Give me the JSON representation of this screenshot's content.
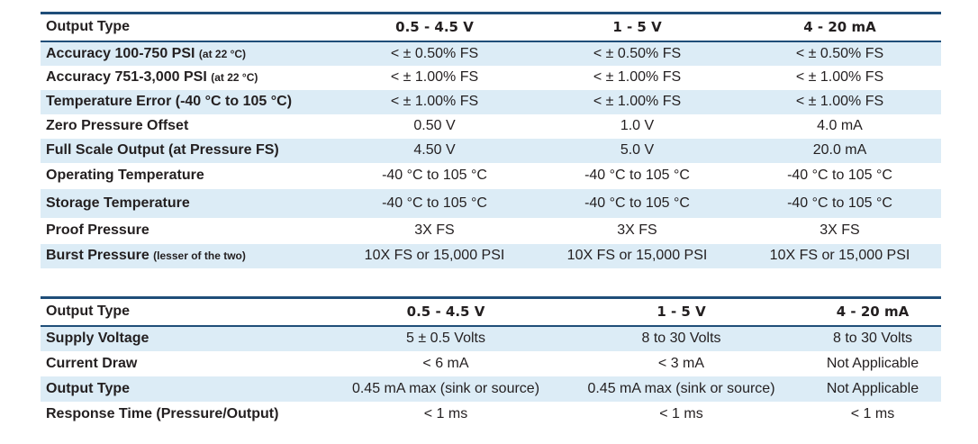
{
  "tables": [
    {
      "header": [
        "Output Type",
        "0.5 - 4.5 V",
        "1 - 5 V",
        "4 - 20 mA"
      ],
      "rows": [
        {
          "label": "Accuracy 100-750 PSI",
          "note": "(at 22 °C)",
          "cells": [
            "< ± 0.50% FS",
            "< ± 0.50% FS",
            "< ± 0.50% FS"
          ]
        },
        {
          "label": "Accuracy 751-3,000 PSI",
          "note": "(at 22 °C)",
          "cells": [
            "< ± 1.00% FS",
            "< ± 1.00% FS",
            "< ± 1.00% FS"
          ]
        },
        {
          "label": "Temperature Error (-40 °C to 105 °C)",
          "cells": [
            "< ± 1.00% FS",
            "< ± 1.00% FS",
            "< ± 1.00% FS"
          ]
        },
        {
          "label": "Zero Pressure Offset",
          "cells": [
            "0.50 V",
            "1.0 V",
            "4.0 mA"
          ]
        },
        {
          "label": "Full Scale Output (at Pressure FS)",
          "cells": [
            "4.50 V",
            "5.0 V",
            "20.0 mA"
          ]
        },
        {
          "label": "Operating Temperature",
          "cells": [
            "-40 °C to 105 °C",
            "-40 °C to 105 °C",
            "-40 °C to 105 °C"
          ]
        },
        {
          "label": "Storage Temperature",
          "cells": [
            "-40 °C to 105 °C",
            "-40 °C to 105 °C",
            "-40 °C to 105 °C"
          ]
        },
        {
          "label": "Proof Pressure",
          "cells": [
            "3X FS",
            "3X FS",
            "3X FS"
          ]
        },
        {
          "label": "Burst Pressure",
          "note": "(lesser of the two)",
          "cells": [
            "10X FS or 15,000 PSI",
            "10X FS or 15,000 PSI",
            "10X FS or 15,000 PSI"
          ]
        }
      ]
    },
    {
      "header": [
        "Output Type",
        "0.5 - 4.5 V",
        "1 - 5 V",
        "4 - 20 mA"
      ],
      "rows": [
        {
          "label": "Supply Voltage",
          "cells": [
            "5 ± 0.5 Volts",
            "8 to 30 Volts",
            "8 to 30 Volts"
          ]
        },
        {
          "label": "Current Draw",
          "cells": [
            "< 6 mA",
            "< 3 mA",
            "Not Applicable"
          ]
        },
        {
          "label": "Output Type",
          "cells": [
            "0.45 mA max (sink or source)",
            "0.45 mA max (sink or source)",
            "Not Applicable"
          ]
        },
        {
          "label": "Response Time (Pressure/Output)",
          "cells": [
            "< 1 ms",
            "< 1 ms",
            "< 1 ms"
          ]
        }
      ]
    }
  ]
}
